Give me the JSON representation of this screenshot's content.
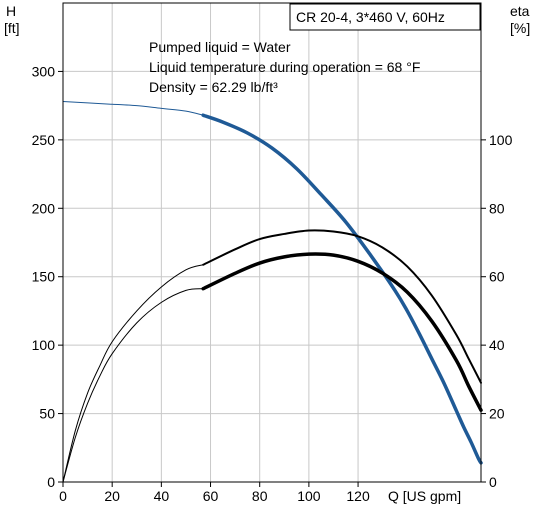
{
  "chart_data": {
    "type": "line",
    "title": "CR 20-4, 3*460 V, 60Hz",
    "annotations": [
      "Pumped liquid = Water",
      "Liquid temperature during operation = 68 °F",
      "Density = 62.29 lb/ft³"
    ],
    "x_axis": {
      "label": "Q [US gpm]",
      "range": [
        0,
        170
      ],
      "ticks": [
        "0",
        "20",
        "40",
        "60",
        "80",
        "100",
        "120"
      ]
    },
    "y_left": {
      "label_top": "H",
      "label_unit": "[ft]",
      "range": [
        0,
        350
      ],
      "ticks": [
        "0",
        "50",
        "100",
        "150",
        "200",
        "250",
        "300"
      ]
    },
    "y_right": {
      "label_top": "eta",
      "label_unit": "[%]",
      "range": [
        0,
        140
      ],
      "ticks": [
        "0",
        "20",
        "40",
        "60",
        "80",
        "100"
      ]
    },
    "series": [
      {
        "axis": "left",
        "color": "#1f5a96",
        "points": [
          [
            0,
            278
          ],
          [
            10,
            277
          ],
          [
            20,
            276
          ],
          [
            30,
            275
          ],
          [
            40,
            273
          ],
          [
            50,
            271
          ],
          [
            57,
            268
          ],
          [
            65,
            263
          ],
          [
            75,
            255
          ],
          [
            85,
            244
          ],
          [
            95,
            229
          ],
          [
            105,
            210
          ],
          [
            115,
            190
          ],
          [
            125,
            166
          ],
          [
            135,
            140
          ],
          [
            140,
            125
          ],
          [
            145,
            108
          ],
          [
            150,
            90
          ],
          [
            155,
            72
          ],
          [
            160,
            52
          ],
          [
            163,
            40
          ],
          [
            166,
            29
          ],
          [
            169,
            17
          ],
          [
            170,
            14
          ]
        ],
        "highlight_range": [
          57,
          170
        ]
      },
      {
        "axis": "right",
        "color": "#000000",
        "points": [
          [
            0,
            0
          ],
          [
            5,
            15
          ],
          [
            10,
            26
          ],
          [
            15,
            34
          ],
          [
            20,
            41
          ],
          [
            30,
            50
          ],
          [
            40,
            57
          ],
          [
            50,
            62
          ],
          [
            57,
            63.5
          ],
          [
            70,
            68
          ],
          [
            80,
            71
          ],
          [
            90,
            72.5
          ],
          [
            100,
            73.5
          ],
          [
            110,
            73.2
          ],
          [
            120,
            71.8
          ],
          [
            130,
            68.5
          ],
          [
            140,
            63
          ],
          [
            150,
            54.5
          ],
          [
            160,
            43
          ],
          [
            165,
            36
          ],
          [
            170,
            29
          ]
        ],
        "highlight_range": [
          57,
          170
        ]
      },
      {
        "axis": "right",
        "color": "#000000",
        "points": [
          [
            0,
            0
          ],
          [
            5,
            13
          ],
          [
            10,
            23
          ],
          [
            15,
            31
          ],
          [
            20,
            37.5
          ],
          [
            30,
            46.5
          ],
          [
            40,
            52.5
          ],
          [
            50,
            56
          ],
          [
            57,
            56.5
          ],
          [
            70,
            61
          ],
          [
            80,
            64
          ],
          [
            90,
            65.8
          ],
          [
            100,
            66.6
          ],
          [
            110,
            66.3
          ],
          [
            120,
            64.5
          ],
          [
            130,
            61
          ],
          [
            140,
            55.5
          ],
          [
            150,
            47
          ],
          [
            160,
            35.5
          ],
          [
            165,
            28
          ],
          [
            170,
            21
          ]
        ],
        "highlight_range": [
          57,
          170
        ]
      }
    ],
    "grid": true,
    "legend": "none"
  }
}
